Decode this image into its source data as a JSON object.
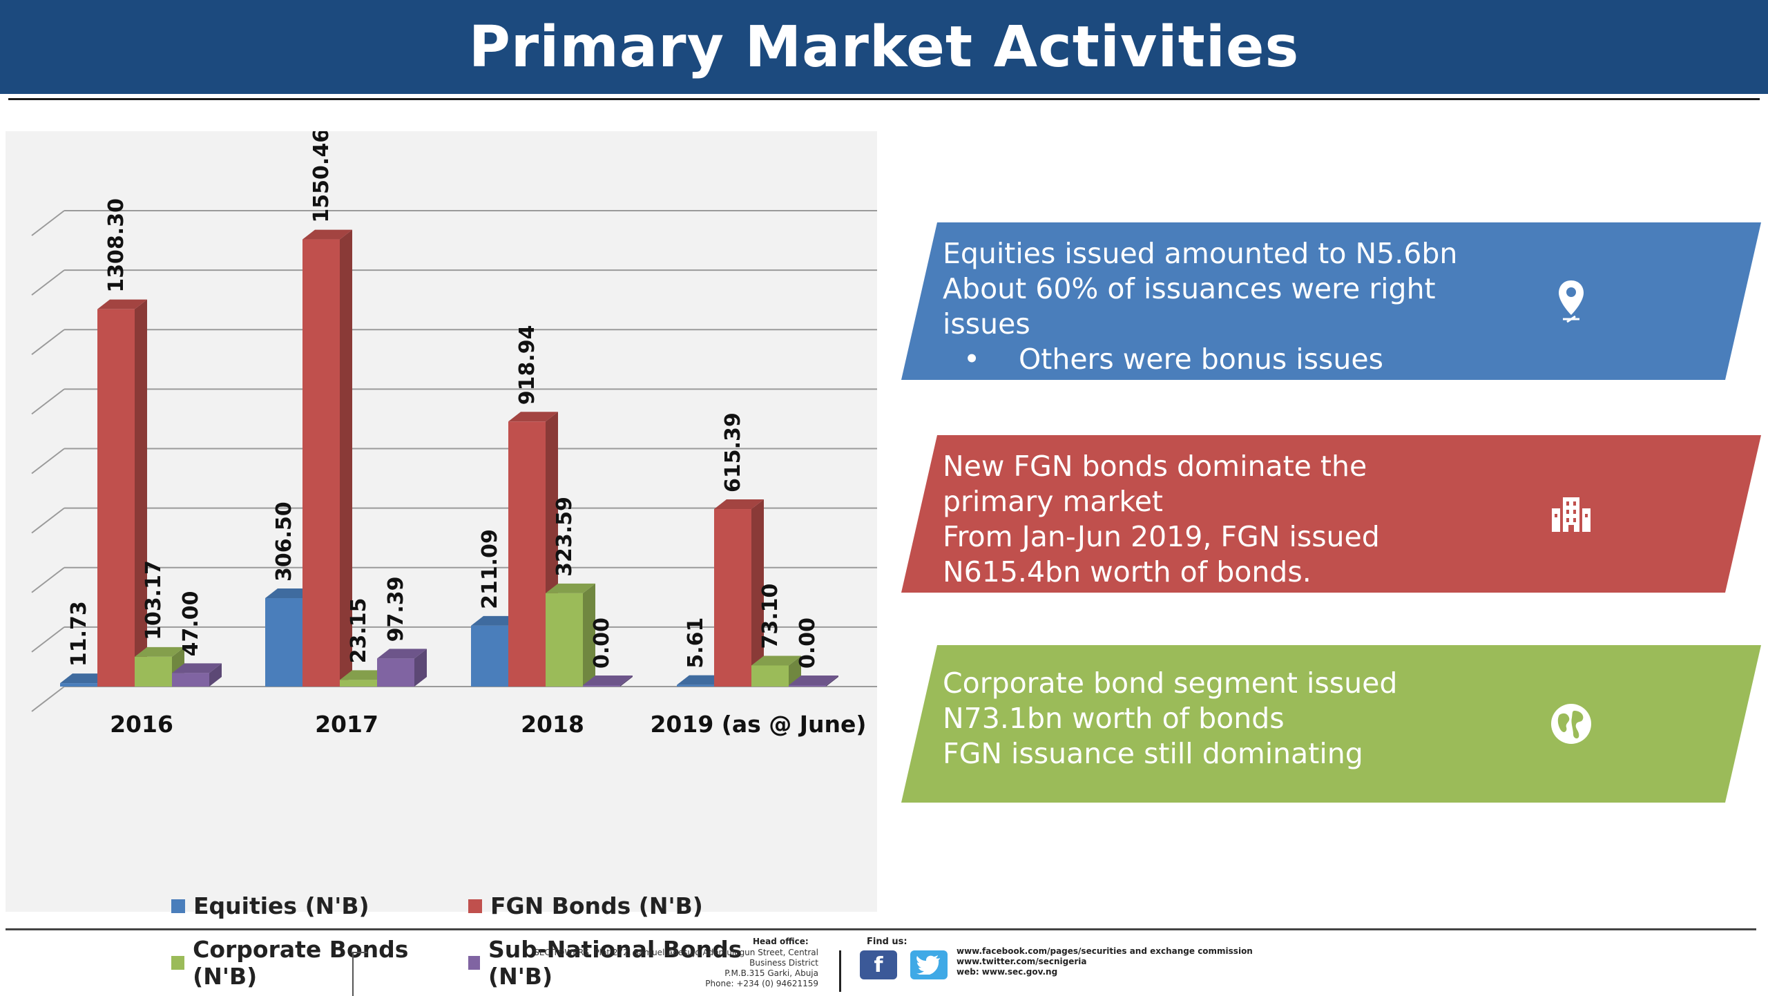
{
  "header": {
    "title": "Primary Market Activities"
  },
  "colors": {
    "header_bg": "#1c4a7e",
    "equities": "#4a7ebb",
    "fgn": "#c0504d",
    "corporate": "#9bbb59",
    "subnational": "#8064a2",
    "panel_blue": "#4a7ebb",
    "panel_red": "#c0504d",
    "panel_green": "#9bbb59"
  },
  "chart_data": {
    "type": "bar",
    "title": "",
    "xlabel": "",
    "ylabel": "",
    "ylim": [
      0,
      1650
    ],
    "grid": true,
    "legend_position": "bottom",
    "categories": [
      "2016",
      "2017",
      "2018",
      "2019 (as @ June)"
    ],
    "series": [
      {
        "name": "Equities (N'B)",
        "values": [
          11.73,
          306.5,
          211.09,
          5.61
        ],
        "labels": [
          "11.73",
          "306.50",
          "211.09",
          "5.61"
        ]
      },
      {
        "name": "FGN Bonds (N'B)",
        "values": [
          1308.3,
          1550.46,
          918.94,
          615.39
        ],
        "labels": [
          "1308.30",
          "1550.46",
          "918.94",
          "615.39"
        ]
      },
      {
        "name": "Corporate Bonds (N'B)",
        "values": [
          103.17,
          23.15,
          323.59,
          73.1
        ],
        "labels": [
          "103.17",
          "23.15",
          "323.59",
          "73.10"
        ]
      },
      {
        "name": "Sub-National Bonds (N'B)",
        "values": [
          47.0,
          97.39,
          0.0,
          0.0
        ],
        "labels": [
          "47.00",
          "97.39",
          "0.00",
          "0.00"
        ]
      }
    ]
  },
  "panels": [
    {
      "lines": [
        "Equities issued amounted to N5.6bn",
        "About 60% of issuances were right",
        "issues"
      ],
      "bullet": "Others were bonus issues",
      "icon": "map-pin-icon"
    },
    {
      "lines": [
        "New FGN bonds dominate the",
        "primary market",
        "From Jan-Jun 2019, FGN issued",
        "N615.4bn worth of bonds."
      ],
      "icon": "building-icon"
    },
    {
      "lines": [
        "Corporate bond segment issued",
        "N73.1bn worth of bonds",
        "FGN issuance still dominating"
      ],
      "icon": "globe-icon"
    }
  ],
  "footer": {
    "head_office_label": "Head office:",
    "address_lines": [
      "SEC TOWERS, Plot 272, Samuel Adesujo Ademulegun Street, Central",
      "Business District",
      "P.M.B.315 Garki, Abuja",
      "Phone: +234 (0) 94621159"
    ],
    "find_us_label": "Find us:",
    "facebook_icon": "facebook-icon",
    "twitter_icon": "twitter-icon",
    "links": [
      "www.facebook.com/pages/securities and exchange commission",
      "www.twitter.com/secnigeria",
      "web: www.sec.gov.ng"
    ]
  }
}
